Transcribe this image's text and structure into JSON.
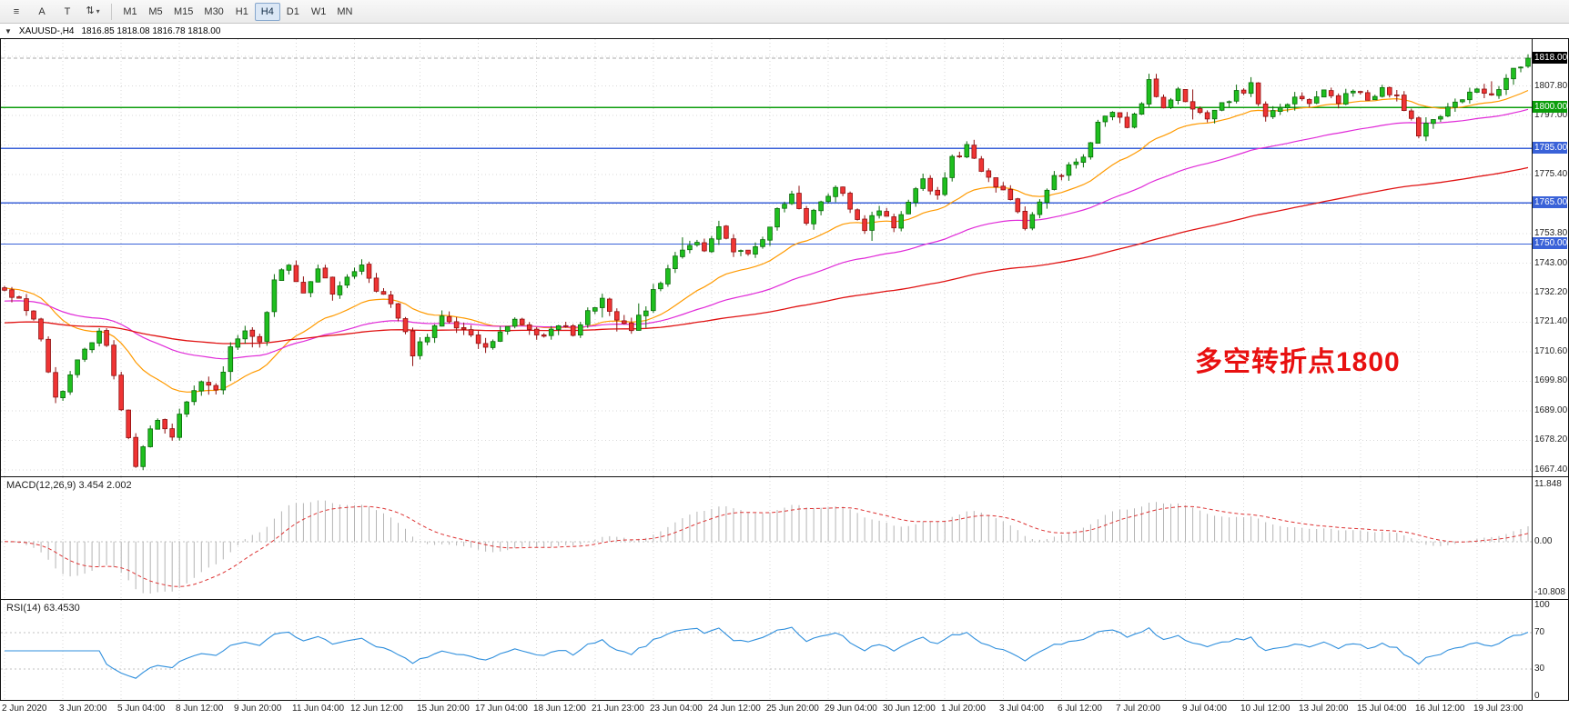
{
  "toolbar": {
    "tools": [
      {
        "name": "menu-icon",
        "glyph": "≡"
      },
      {
        "name": "annotate-a-tool",
        "glyph": "A"
      },
      {
        "name": "text-tool",
        "glyph": "T"
      },
      {
        "name": "cursor-mode-dropdown",
        "glyph": "⇅",
        "caret": "▾"
      }
    ],
    "timeframes": [
      {
        "label": "M1",
        "active": false
      },
      {
        "label": "M5",
        "active": false
      },
      {
        "label": "M15",
        "active": false
      },
      {
        "label": "M30",
        "active": false
      },
      {
        "label": "H1",
        "active": false
      },
      {
        "label": "H4",
        "active": true
      },
      {
        "label": "D1",
        "active": false
      },
      {
        "label": "W1",
        "active": false
      },
      {
        "label": "MN",
        "active": false
      }
    ]
  },
  "chart_header": {
    "collapse_icon": "▼",
    "symbol_period": "XAUUSD-,H4",
    "ohlc": "1816.85 1818.08 1816.78 1818.00"
  },
  "annotation": {
    "text": "多空转折点1800",
    "color": "#e81010"
  },
  "chart_data": {
    "type": "candlestick",
    "symbol": "XAUUSD",
    "timeframe": "H4",
    "price_axis": {
      "min": 1665,
      "max": 1825,
      "grid_step": 10.8,
      "gridlines": [
        {
          "value": 1818.6,
          "label": ""
        },
        {
          "value": 1807.8,
          "label": "1807.80"
        },
        {
          "value": 1797.0,
          "label": "1797.00"
        },
        {
          "value": 1786.2,
          "label": ""
        },
        {
          "value": 1775.4,
          "label": "1775.40"
        },
        {
          "value": 1764.6,
          "label": ""
        },
        {
          "value": 1753.8,
          "label": "1753.80"
        },
        {
          "value": 1743.0,
          "label": "1743.00"
        },
        {
          "value": 1732.2,
          "label": "1732.20"
        },
        {
          "value": 1721.4,
          "label": "1721.40"
        },
        {
          "value": 1710.6,
          "label": "1710.60"
        },
        {
          "value": 1699.8,
          "label": "1699.80"
        },
        {
          "value": 1689.0,
          "label": "1689.00"
        },
        {
          "value": 1678.2,
          "label": "1678.20"
        },
        {
          "value": 1667.4,
          "label": "1667.40"
        }
      ]
    },
    "levels": [
      {
        "value": 1800.0,
        "label": "1800.00",
        "color": "#0c9e0c"
      },
      {
        "value": 1785.0,
        "label": "1785.00",
        "color": "#3a62d8"
      },
      {
        "value": 1765.0,
        "label": "1765.00",
        "color": "#3a62d8"
      },
      {
        "value": 1750.0,
        "label": "1750.00",
        "color": "#3a62d8"
      }
    ],
    "last_price": {
      "value": 1818.0,
      "label": "1818.00",
      "bg": "#000000",
      "fg": "#ffffff"
    },
    "time_labels": [
      "2 Jun 2020",
      "3 Jun 20:00",
      "5 Jun 04:00",
      "8 Jun 12:00",
      "9 Jun 20:00",
      "11 Jun 04:00",
      "12 Jun 12:00",
      "15 Jun 20:00",
      "17 Jun 04:00",
      "18 Jun 12:00",
      "21 Jun 23:00",
      "23 Jun 04:00",
      "24 Jun 12:00",
      "25 Jun 20:00",
      "29 Jun 04:00",
      "30 Jun 12:00",
      "1 Jul 20:00",
      "3 Jul 04:00",
      "6 Jul 12:00",
      "7 Jul 20:00",
      "9 Jul 04:00",
      "10 Jul 12:00",
      "13 Jul 20:00",
      "15 Jul 04:00",
      "16 Jul 12:00",
      "19 Jul 23:00"
    ],
    "candles": {
      "count": 210,
      "seed": 7,
      "noise": 1.5,
      "wick": 2.2,
      "anchors": [
        [
          0,
          1734
        ],
        [
          2,
          1729
        ],
        [
          4,
          1722
        ],
        [
          5,
          1714
        ],
        [
          7,
          1694
        ],
        [
          9,
          1701
        ],
        [
          11,
          1713
        ],
        [
          13,
          1717
        ],
        [
          14,
          1712
        ],
        [
          16,
          1689
        ],
        [
          18,
          1670
        ],
        [
          19,
          1677
        ],
        [
          21,
          1686
        ],
        [
          23,
          1680
        ],
        [
          25,
          1693
        ],
        [
          27,
          1700
        ],
        [
          29,
          1696
        ],
        [
          31,
          1711
        ],
        [
          33,
          1717
        ],
        [
          35,
          1713
        ],
        [
          37,
          1737
        ],
        [
          39,
          1742
        ],
        [
          41,
          1731
        ],
        [
          43,
          1742
        ],
        [
          45,
          1733
        ],
        [
          47,
          1738
        ],
        [
          49,
          1742
        ],
        [
          51,
          1734
        ],
        [
          53,
          1728
        ],
        [
          55,
          1719
        ],
        [
          56,
          1709
        ],
        [
          58,
          1717
        ],
        [
          60,
          1723
        ],
        [
          62,
          1720
        ],
        [
          64,
          1717
        ],
        [
          66,
          1712
        ],
        [
          68,
          1717
        ],
        [
          70,
          1722
        ],
        [
          72,
          1719
        ],
        [
          74,
          1716
        ],
        [
          76,
          1721
        ],
        [
          78,
          1718
        ],
        [
          80,
          1725
        ],
        [
          82,
          1729
        ],
        [
          84,
          1721
        ],
        [
          86,
          1719
        ],
        [
          88,
          1727
        ],
        [
          90,
          1737
        ],
        [
          92,
          1746
        ],
        [
          94,
          1751
        ],
        [
          96,
          1748
        ],
        [
          98,
          1756
        ],
        [
          100,
          1748
        ],
        [
          102,
          1746
        ],
        [
          104,
          1753
        ],
        [
          106,
          1762
        ],
        [
          108,
          1767
        ],
        [
          110,
          1759
        ],
        [
          112,
          1765
        ],
        [
          114,
          1772
        ],
        [
          116,
          1763
        ],
        [
          118,
          1756
        ],
        [
          120,
          1763
        ],
        [
          122,
          1756
        ],
        [
          124,
          1766
        ],
        [
          126,
          1773
        ],
        [
          128,
          1768
        ],
        [
          130,
          1781
        ],
        [
          132,
          1785
        ],
        [
          134,
          1776
        ],
        [
          136,
          1772
        ],
        [
          138,
          1765
        ],
        [
          140,
          1757
        ],
        [
          142,
          1766
        ],
        [
          144,
          1774
        ],
        [
          146,
          1778
        ],
        [
          148,
          1783
        ],
        [
          150,
          1794
        ],
        [
          152,
          1798
        ],
        [
          154,
          1793
        ],
        [
          156,
          1801
        ],
        [
          157,
          1810
        ],
        [
          159,
          1800
        ],
        [
          161,
          1807
        ],
        [
          163,
          1799
        ],
        [
          165,
          1795
        ],
        [
          167,
          1801
        ],
        [
          169,
          1805
        ],
        [
          171,
          1808
        ],
        [
          173,
          1797
        ],
        [
          175,
          1800
        ],
        [
          177,
          1805
        ],
        [
          179,
          1801
        ],
        [
          181,
          1806
        ],
        [
          183,
          1802
        ],
        [
          185,
          1807
        ],
        [
          187,
          1804
        ],
        [
          189,
          1807
        ],
        [
          191,
          1803
        ],
        [
          193,
          1796
        ],
        [
          194,
          1791
        ],
        [
          196,
          1795
        ],
        [
          198,
          1800
        ],
        [
          200,
          1804
        ],
        [
          202,
          1806
        ],
        [
          204,
          1805
        ],
        [
          206,
          1810
        ],
        [
          208,
          1816
        ],
        [
          209,
          1818
        ]
      ]
    },
    "moving_averages": [
      {
        "name": "fast-ma",
        "period": 21,
        "seed": 1734,
        "color": "#ff9a00",
        "width": 1.2
      },
      {
        "name": "mid-ma",
        "period": 55,
        "seed": 1729,
        "color": "#e02ad8",
        "width": 1.2
      },
      {
        "name": "slow-ma",
        "period": 144,
        "seed": 1721,
        "color": "#e01212",
        "width": 1.3
      }
    ],
    "colors": {
      "bull": "#1fbf1f",
      "bull_border": "#0b6b0b",
      "bear": "#ef3434",
      "bear_border": "#8f1010",
      "grid": "#dadada",
      "bid_line": "#aaaaaa"
    }
  },
  "macd": {
    "label": "MACD(12,26,9) 3.454 2.002",
    "fast": 12,
    "slow": 26,
    "signal": 9,
    "axis": {
      "max": 11.848,
      "zero": 0.0,
      "min": -10.808,
      "max_label": "11.848",
      "zero_label": "0.00",
      "min_label": "-10.808"
    },
    "bar_color": "#b4b4b4",
    "signal_color": "#dd3333"
  },
  "rsi": {
    "label": "RSI(14) 63.4530",
    "period": 14,
    "axis_labels": [
      "100",
      "70",
      "30",
      "0"
    ],
    "axis_values": [
      100,
      70,
      30,
      0
    ],
    "levels": [
      70,
      30
    ],
    "color": "#2f8fdd"
  }
}
